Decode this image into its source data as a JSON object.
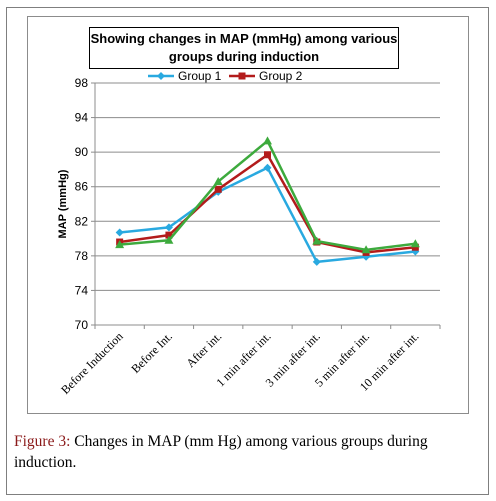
{
  "chart_data": {
    "type": "line",
    "title": "Showing changes in MAP (mmHg) among various\ngroups during induction",
    "ylabel": "MAP (mmHg)",
    "xlabel": "",
    "ylim": [
      70,
      98
    ],
    "yticks": [
      70,
      74,
      78,
      82,
      86,
      90,
      94,
      98
    ],
    "categories": [
      "Before Induction",
      "Before Int.",
      "After int.",
      "1 min after int.",
      "3 min after int.",
      "5 min after int.",
      "10 min after int."
    ],
    "grid": true,
    "legend_position": "top",
    "series": [
      {
        "name": "Group 1",
        "color": "#29a9e0",
        "marker": "diamond",
        "values": [
          80.7,
          81.3,
          85.4,
          88.2,
          77.3,
          77.9,
          78.5
        ]
      },
      {
        "name": "Group 2",
        "color": "#b31b1b",
        "marker": "square",
        "values": [
          79.6,
          80.4,
          85.7,
          89.7,
          79.6,
          78.4,
          79.0
        ]
      },
      {
        "color": "#3daa3d",
        "marker": "triangle",
        "values": [
          79.3,
          79.8,
          86.6,
          91.3,
          79.7,
          78.7,
          79.4
        ]
      }
    ]
  },
  "caption": {
    "label": "Figure 3:",
    "text": " Changes in MAP (mm Hg) among various groups during induction."
  }
}
